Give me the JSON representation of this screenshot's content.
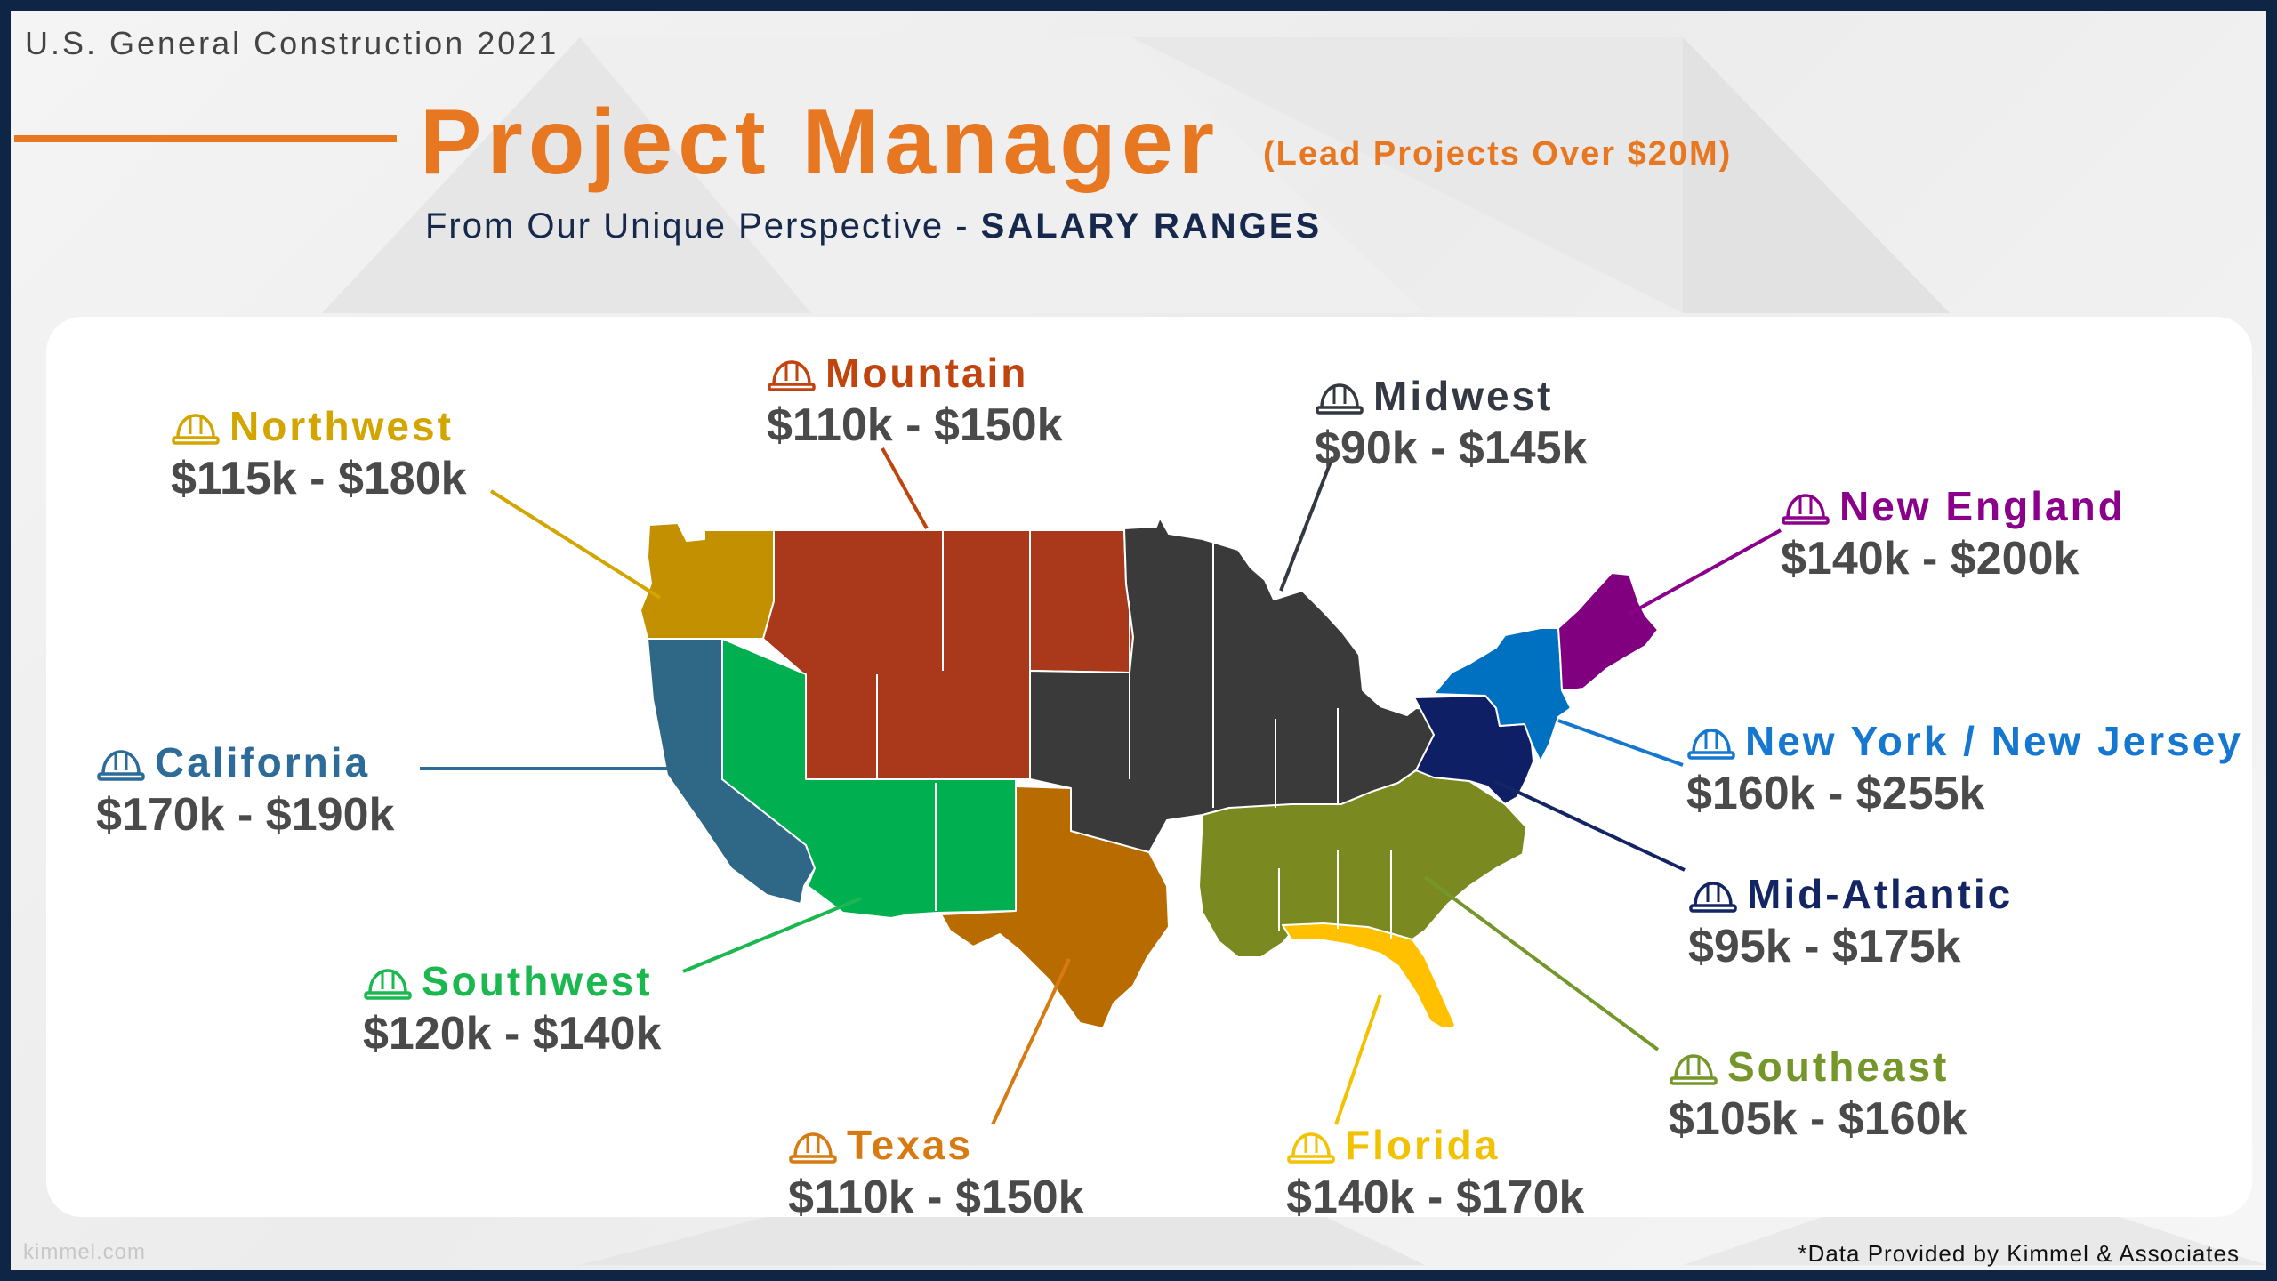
{
  "header": {
    "kicker": "U.S. General Construction 2021",
    "title": "Project Manager",
    "title_note": "(Lead Projects Over $20M)",
    "tagline_prefix": "From Our Unique Perspective - ",
    "tagline_strong": "SALARY RANGES"
  },
  "regions": {
    "northwest": {
      "name": "Northwest",
      "range": "$115k - $180k",
      "color": "#d2a500"
    },
    "mountain": {
      "name": "Mountain",
      "range": "$110k - $150k",
      "color": "#c1440e"
    },
    "midwest": {
      "name": "Midwest",
      "range": "$90k - $145k",
      "color": "#333842"
    },
    "new_england": {
      "name": "New England",
      "range": "$140k - $200k",
      "color": "#8b008b"
    },
    "california": {
      "name": "California",
      "range": "$170k - $190k",
      "color": "#2d6b99"
    },
    "ny_nj": {
      "name": "New York / New Jersey",
      "range": "$160k - $255k",
      "color": "#1577cf"
    },
    "mid_atlantic": {
      "name": "Mid-Atlantic",
      "range": "$95k - $175k",
      "color": "#132563"
    },
    "southwest": {
      "name": "Southwest",
      "range": "$120k - $140k",
      "color": "#1ab84f"
    },
    "southeast": {
      "name": "Southeast",
      "range": "$105k - $160k",
      "color": "#74962a"
    },
    "texas": {
      "name": "Texas",
      "range": "$110k - $150k",
      "color": "#d77a12"
    },
    "florida": {
      "name": "Florida",
      "range": "$140k - $170k",
      "color": "#f2c200"
    }
  },
  "map_fills": {
    "northwest": "#c29000",
    "california": "#2f6787",
    "southwest": "#00b050",
    "mountain": "#a9391a",
    "texas": "#b86c00",
    "midwest": "#3a3a3a",
    "southeast": "#7a8a20",
    "florida": "#ffc000",
    "mid_atlantic": "#0f1f66",
    "ny_nj": "#0070c0",
    "new_england": "#800080"
  },
  "footer": {
    "site": "kimmel.com",
    "source": "*Data Provided by Kimmel & Associates"
  }
}
